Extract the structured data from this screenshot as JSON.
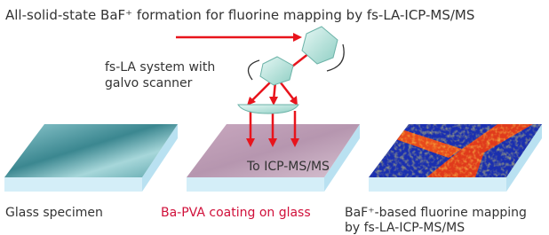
{
  "title": "All-solid-state BaF⁺ formation for fluorine mapping by fs-LA-ICP-MS/MS",
  "system_label": [
    "fs-LA system with",
    "galvo scanner"
  ],
  "outlet_label": "To ICP-MS/MS",
  "panels": [
    {
      "label": [
        "Glass specimen"
      ]
    },
    {
      "label": [
        "Ba-PVA coating on glass"
      ]
    },
    {
      "label": [
        "BaF⁺-based fluorine mapping",
        "by fs-LA-ICP-MS/MS"
      ]
    }
  ]
}
